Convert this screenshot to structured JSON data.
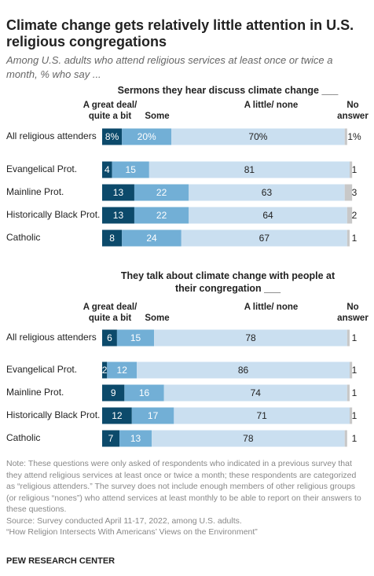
{
  "title": "Climate change gets relatively little attention in U.S. religious congregations",
  "subtitle": "Among U.S. adults who attend religious services at least once or twice a month, % who say ...",
  "note": "Note: These questions were only asked of respondents who indicated in a previous survey that they attend religious services at least once or twice a month; these respondents are categorized as “religious attenders.” The survey does not include enough members of other religious groups (or religious “nones”) who attend services at least monthly to be able to report on their answers to these questions.",
  "source": "Source: Survey conducted April 11-17, 2022, among U.S. adults.",
  "report": "“How Religion Intersects With Americans’ Views on the Environment”",
  "brand": "PEW RESEARCH CENTER",
  "chart_data": [
    {
      "type": "stacked-bar",
      "title": "Sermons they hear discuss climate change ___",
      "categories": [
        "All religious attenders",
        "Evangelical Prot.",
        "Mainline Prot.",
        "Historically Black Prot.",
        "Catholic"
      ],
      "series": [
        {
          "name": "A great deal/ quite a bit",
          "color": "#0c4a6b",
          "values": [
            8,
            4,
            13,
            13,
            8
          ],
          "value_labels": [
            "8%",
            "4",
            "13",
            "13",
            "8"
          ]
        },
        {
          "name": "Some",
          "color": "#72afd6",
          "values": [
            20,
            15,
            22,
            22,
            24
          ],
          "value_labels": [
            "20%",
            "15",
            "22",
            "22",
            "24"
          ]
        },
        {
          "name": "A little/ none",
          "color": "#cadff0",
          "values": [
            70,
            81,
            63,
            64,
            67
          ],
          "value_labels": [
            "70%",
            "81",
            "63",
            "64",
            "67"
          ]
        },
        {
          "name": "No answer",
          "color": "#c8c8c8",
          "values": [
            1,
            1,
            3,
            2,
            1
          ],
          "value_labels": [
            "1%",
            "1",
            "3",
            "2",
            "1"
          ]
        }
      ]
    },
    {
      "type": "stacked-bar",
      "title": "They talk about climate change with people at their congregation ___",
      "categories": [
        "All religious attenders",
        "Evangelical Prot.",
        "Mainline Prot.",
        "Historically Black Prot.",
        "Catholic"
      ],
      "series": [
        {
          "name": "A great deal/ quite a bit",
          "color": "#0c4a6b",
          "values": [
            6,
            2,
            9,
            12,
            7
          ]
        },
        {
          "name": "Some",
          "color": "#72afd6",
          "values": [
            15,
            12,
            16,
            17,
            13
          ]
        },
        {
          "name": "A little/ none",
          "color": "#cadff0",
          "values": [
            78,
            86,
            74,
            71,
            78
          ]
        },
        {
          "name": "No answer",
          "color": "#c8c8c8",
          "values": [
            1,
            1,
            1,
            1,
            1
          ]
        }
      ]
    }
  ]
}
